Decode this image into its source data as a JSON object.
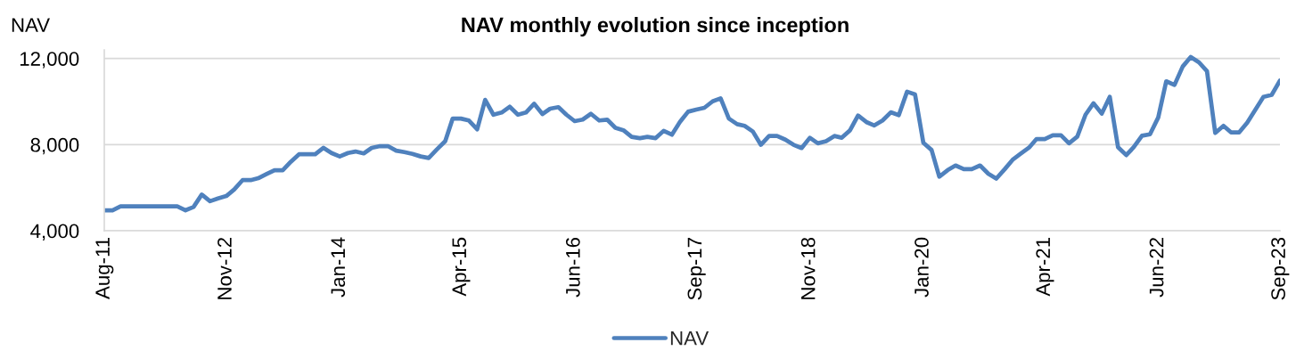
{
  "chart_data": {
    "type": "line",
    "title": "NAV monthly evolution since inception",
    "ylabel": "NAV",
    "x": [
      "2011-08",
      "2011-09",
      "2011-10",
      "2011-11",
      "2011-12",
      "2012-01",
      "2012-02",
      "2012-03",
      "2012-04",
      "2012-05",
      "2012-06",
      "2012-07",
      "2012-08",
      "2012-09",
      "2012-10",
      "2012-11",
      "2012-12",
      "2013-01",
      "2013-02",
      "2013-03",
      "2013-04",
      "2013-05",
      "2013-06",
      "2013-07",
      "2013-08",
      "2013-09",
      "2013-10",
      "2013-11",
      "2013-12",
      "2014-01",
      "2014-02",
      "2014-03",
      "2014-04",
      "2014-05",
      "2014-06",
      "2014-07",
      "2014-08",
      "2014-09",
      "2014-10",
      "2014-11",
      "2014-12",
      "2015-01",
      "2015-02",
      "2015-03",
      "2015-04",
      "2015-05",
      "2015-06",
      "2015-07",
      "2015-08",
      "2015-09",
      "2015-10",
      "2015-11",
      "2015-12",
      "2016-01",
      "2016-02",
      "2016-03",
      "2016-04",
      "2016-05",
      "2016-06",
      "2016-07",
      "2016-08",
      "2016-09",
      "2016-10",
      "2016-11",
      "2016-12",
      "2017-01",
      "2017-02",
      "2017-03",
      "2017-04",
      "2017-05",
      "2017-06",
      "2017-07",
      "2017-08",
      "2017-09",
      "2017-10",
      "2017-11",
      "2017-12",
      "2018-01",
      "2018-02",
      "2018-03",
      "2018-04",
      "2018-05",
      "2018-06",
      "2018-07",
      "2018-08",
      "2018-09",
      "2018-10",
      "2018-11",
      "2018-12",
      "2019-01",
      "2019-02",
      "2019-03",
      "2019-04",
      "2019-05",
      "2019-06",
      "2019-07",
      "2019-08",
      "2019-09",
      "2019-10",
      "2019-11",
      "2019-12",
      "2020-01",
      "2020-02",
      "2020-03",
      "2020-04",
      "2020-05",
      "2020-06",
      "2020-07",
      "2020-08",
      "2020-09",
      "2020-10",
      "2020-11",
      "2020-12",
      "2021-01",
      "2021-02",
      "2021-03",
      "2021-04",
      "2021-05",
      "2021-06",
      "2021-07",
      "2021-08",
      "2021-09",
      "2021-10",
      "2021-11",
      "2021-12",
      "2022-01",
      "2022-02",
      "2022-03",
      "2022-04",
      "2022-05",
      "2022-06",
      "2022-07",
      "2022-08",
      "2022-09",
      "2022-10",
      "2022-11",
      "2022-12",
      "2023-01",
      "2023-02",
      "2023-03",
      "2023-04",
      "2023-05",
      "2023-06",
      "2023-07",
      "2023-08",
      "2023-09"
    ],
    "series": [
      {
        "name": "NAV",
        "color": "#4f81bd",
        "values": [
          4950,
          4950,
          5130,
          5130,
          5130,
          5130,
          5130,
          5130,
          5130,
          5130,
          4950,
          5100,
          5680,
          5370,
          5500,
          5610,
          5920,
          6350,
          6350,
          6440,
          6630,
          6810,
          6810,
          7200,
          7550,
          7550,
          7550,
          7850,
          7610,
          7450,
          7610,
          7680,
          7590,
          7850,
          7930,
          7930,
          7720,
          7650,
          7570,
          7450,
          7380,
          7780,
          8160,
          9210,
          9210,
          9120,
          8710,
          10080,
          9390,
          9490,
          9760,
          9390,
          9490,
          9900,
          9420,
          9670,
          9740,
          9390,
          9090,
          9160,
          9430,
          9120,
          9160,
          8780,
          8670,
          8360,
          8300,
          8360,
          8300,
          8640,
          8460,
          9050,
          9530,
          9630,
          9710,
          10010,
          10150,
          9210,
          8950,
          8870,
          8610,
          7990,
          8400,
          8400,
          8230,
          7990,
          7840,
          8320,
          8060,
          8160,
          8400,
          8320,
          8670,
          9350,
          9050,
          8890,
          9120,
          9500,
          9370,
          10460,
          10330,
          8090,
          7750,
          6510,
          6810,
          7030,
          6860,
          6860,
          7030,
          6650,
          6420,
          6850,
          7290,
          7580,
          7860,
          8260,
          8260,
          8430,
          8430,
          8060,
          8370,
          9390,
          9920,
          9440,
          10220,
          7880,
          7510,
          7880,
          8410,
          8480,
          9260,
          10940,
          10770,
          11630,
          12070,
          11820,
          11410,
          8540,
          8870,
          8570,
          8570,
          9020,
          9630,
          10220,
          10310,
          10970
        ]
      }
    ],
    "xlim": [
      "2011-08",
      "2023-09"
    ],
    "xticks": [
      {
        "value": "2011-08",
        "label": "Aug-11"
      },
      {
        "value": "2012-11",
        "label": "Nov-12"
      },
      {
        "value": "2014-01",
        "label": "Jan-14"
      },
      {
        "value": "2015-04",
        "label": "Apr-15"
      },
      {
        "value": "2016-06",
        "label": "Jun-16"
      },
      {
        "value": "2017-09",
        "label": "Sep-17"
      },
      {
        "value": "2018-11",
        "label": "Nov-18"
      },
      {
        "value": "2020-01",
        "label": "Jan-20"
      },
      {
        "value": "2021-04",
        "label": "Apr-21"
      },
      {
        "value": "2022-06",
        "label": "Jun-22"
      },
      {
        "value": "2023-09",
        "label": "Sep-23"
      }
    ],
    "ylim": [
      4000,
      12400
    ],
    "yticks": [
      {
        "value": 4000,
        "label": "4,000"
      },
      {
        "value": 8000,
        "label": "8,000"
      },
      {
        "value": 12000,
        "label": "12,000"
      }
    ],
    "grid": "y",
    "legend": "bottom"
  }
}
